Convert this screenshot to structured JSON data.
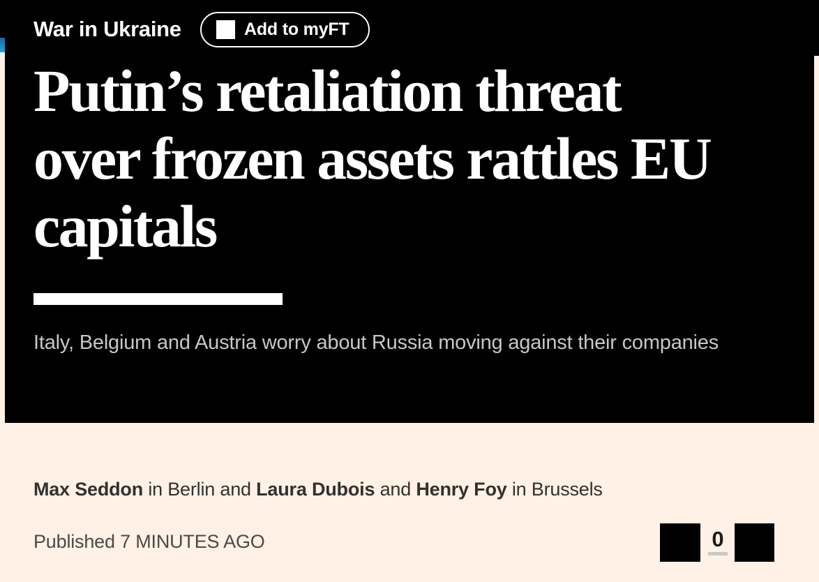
{
  "topic": {
    "label": "War in Ukraine"
  },
  "myft": {
    "label": "Add to myFT"
  },
  "headline": {
    "lines": [
      "Putin’s retaliation threat",
      "over frozen assets rattles EU",
      "capitals"
    ]
  },
  "standfirst": "Italy, Belgium and Austria worry about Russia moving against their companies",
  "byline": {
    "segments": [
      {
        "text": "Max Seddon"
      },
      {
        "text": " in Berlin and "
      },
      {
        "text": "Laura Dubois"
      },
      {
        "text": " and "
      },
      {
        "text": "Henry Foy"
      },
      {
        "text": " in Brussels"
      }
    ]
  },
  "published": {
    "label": "Published",
    "time": "7 MINUTES AGO"
  },
  "comments": {
    "count": "0"
  },
  "colors": {
    "background": "#FFF1E5",
    "topper": "#000000",
    "headline_text": "#FFFFFF",
    "standfirst_text": "#C9C7C5",
    "body_text": "#33302E",
    "timestamp_text": "#4D4845",
    "accent_sliver": "#2AA0DD"
  }
}
